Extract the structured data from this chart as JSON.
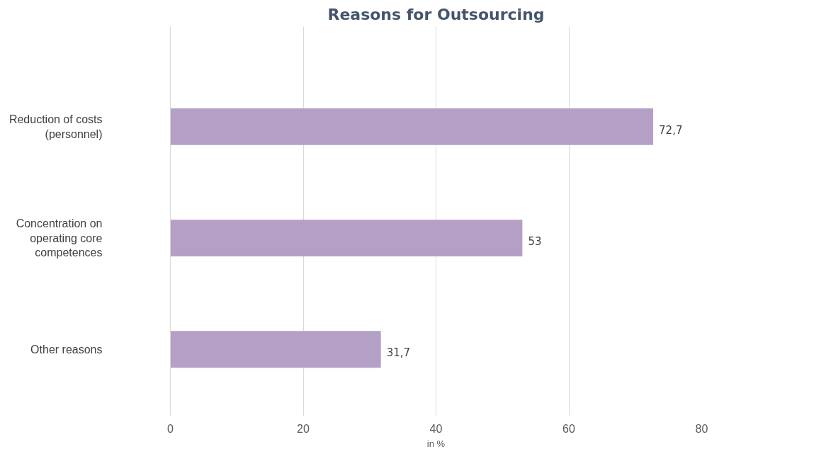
{
  "chart_data": {
    "type": "bar",
    "orientation": "horizontal",
    "title": "Reasons for Outsourcing",
    "xlabel": "in %",
    "categories": [
      "Reduction of costs (personnel)",
      "Concentration on operating core competences",
      "Other reasons"
    ],
    "values": [
      72.7,
      53,
      31.7
    ],
    "value_labels": [
      "72,7",
      "53",
      "31,7"
    ],
    "color": "#b4a0c6",
    "xlim": [
      0,
      80
    ],
    "xticks": [
      0,
      20,
      40,
      60,
      80
    ],
    "grid": "x"
  }
}
